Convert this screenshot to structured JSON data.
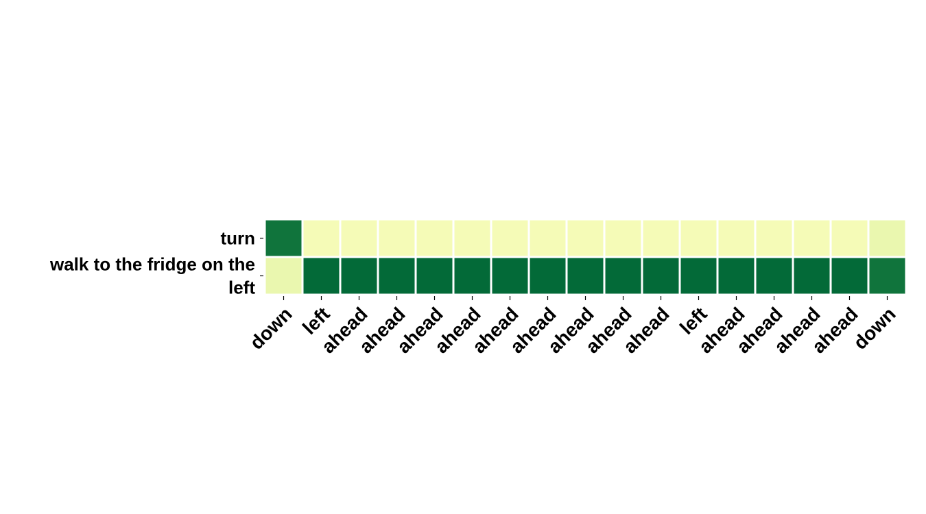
{
  "chart_data": {
    "type": "heatmap",
    "rows": [
      "turn",
      "walk to the fridge on the left"
    ],
    "columns": [
      "down",
      "left",
      "ahead",
      "ahead",
      "ahead",
      "ahead",
      "ahead",
      "ahead",
      "ahead",
      "ahead",
      "ahead",
      "left",
      "ahead",
      "ahead",
      "ahead",
      "ahead",
      "down"
    ],
    "values": [
      [
        0.92,
        0.02,
        0.02,
        0.02,
        0.02,
        0.02,
        0.02,
        0.02,
        0.02,
        0.02,
        0.02,
        0.02,
        0.02,
        0.02,
        0.02,
        0.02,
        0.08
      ],
      [
        0.08,
        0.98,
        0.98,
        0.98,
        0.98,
        0.98,
        0.98,
        0.98,
        0.98,
        0.98,
        0.98,
        0.98,
        0.98,
        0.98,
        0.98,
        0.98,
        0.92
      ]
    ],
    "colormap": "YlGn",
    "colors": {
      "low": "#f7fcb9",
      "mid": "#78c679",
      "high": "#006837"
    },
    "xlabel": "",
    "ylabel": "",
    "title": ""
  }
}
